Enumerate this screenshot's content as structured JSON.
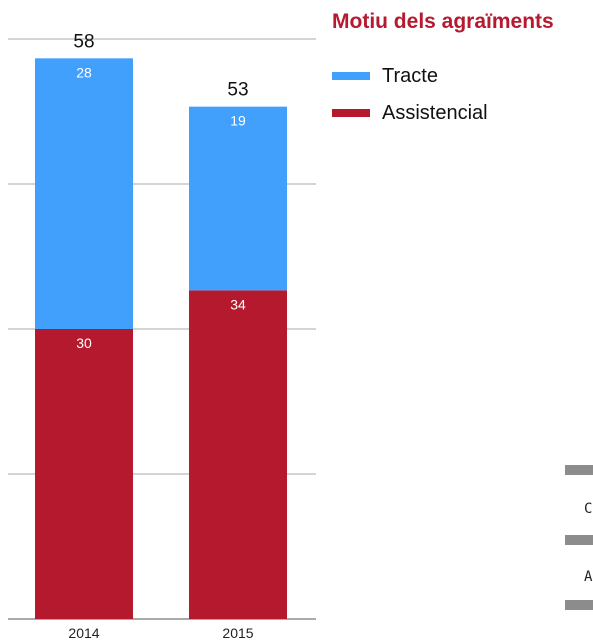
{
  "legend": {
    "title": "Motiu dels agraïments",
    "items": [
      {
        "label": "Tracte",
        "color": "#42a0fd"
      },
      {
        "label": "Assistencial",
        "color": "#b5192d"
      }
    ]
  },
  "side_fragments": {
    "letter_1": "C",
    "letter_2": "A",
    "color": "#8c8c8c"
  },
  "chart_data": {
    "type": "bar",
    "stacked": true,
    "categories": [
      "2014",
      "2015"
    ],
    "series": [
      {
        "name": "Assistencial",
        "values": [
          30,
          34
        ],
        "color": "#b5192d"
      },
      {
        "name": "Tracte",
        "values": [
          28,
          19
        ],
        "color": "#42a0fd"
      }
    ],
    "totals": [
      58,
      53
    ],
    "ylim": [
      0,
      60
    ],
    "grid": true,
    "legend_position": "top-right"
  }
}
